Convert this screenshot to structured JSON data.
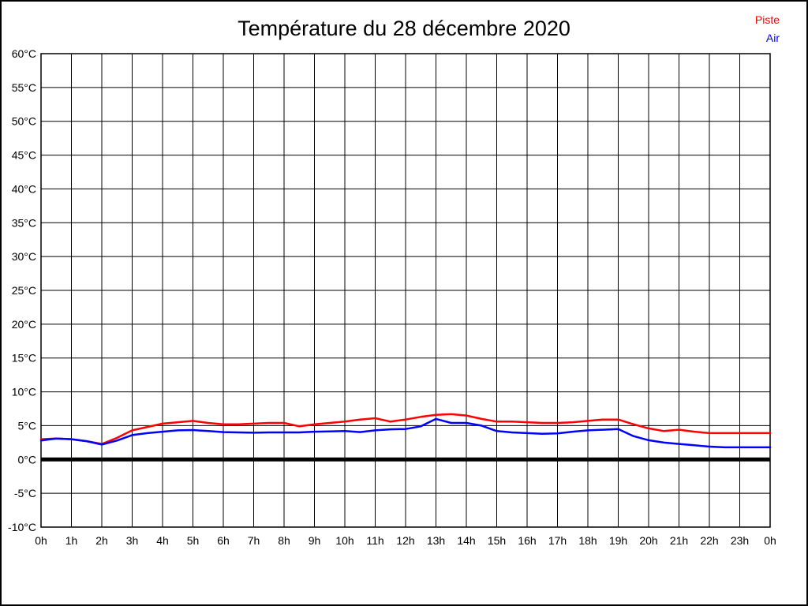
{
  "title": "Température du 28 décembre 2020",
  "legend": [
    {
      "label": "Piste",
      "color": "#ff0000"
    },
    {
      "label": "Air",
      "color": "#0000ff"
    }
  ],
  "chart_data": {
    "type": "line",
    "title": "Température du 28 décembre 2020",
    "xlabel": "",
    "ylabel": "",
    "xlim": [
      0,
      24
    ],
    "ylim": [
      -10,
      60
    ],
    "grid": true,
    "zero_line_at": 0,
    "legend_position": "top-right",
    "x_ticks": [
      {
        "v": 0,
        "label": "0h"
      },
      {
        "v": 1,
        "label": "1h"
      },
      {
        "v": 2,
        "label": "2h"
      },
      {
        "v": 3,
        "label": "3h"
      },
      {
        "v": 4,
        "label": "4h"
      },
      {
        "v": 5,
        "label": "5h"
      },
      {
        "v": 6,
        "label": "6h"
      },
      {
        "v": 7,
        "label": "7h"
      },
      {
        "v": 8,
        "label": "8h"
      },
      {
        "v": 9,
        "label": "9h"
      },
      {
        "v": 10,
        "label": "10h"
      },
      {
        "v": 11,
        "label": "11h"
      },
      {
        "v": 12,
        "label": "12h"
      },
      {
        "v": 13,
        "label": "13h"
      },
      {
        "v": 14,
        "label": "14h"
      },
      {
        "v": 15,
        "label": "15h"
      },
      {
        "v": 16,
        "label": "16h"
      },
      {
        "v": 17,
        "label": "17h"
      },
      {
        "v": 18,
        "label": "18h"
      },
      {
        "v": 19,
        "label": "19h"
      },
      {
        "v": 20,
        "label": "20h"
      },
      {
        "v": 21,
        "label": "21h"
      },
      {
        "v": 22,
        "label": "22h"
      },
      {
        "v": 23,
        "label": "23h"
      },
      {
        "v": 24,
        "label": "0h"
      }
    ],
    "y_ticks": [
      {
        "v": 60,
        "label": "60°C"
      },
      {
        "v": 55,
        "label": "55°C"
      },
      {
        "v": 50,
        "label": "50°C"
      },
      {
        "v": 45,
        "label": "45°C"
      },
      {
        "v": 40,
        "label": "40°C"
      },
      {
        "v": 35,
        "label": "35°C"
      },
      {
        "v": 30,
        "label": "30°C"
      },
      {
        "v": 25,
        "label": "25°C"
      },
      {
        "v": 20,
        "label": "20°C"
      },
      {
        "v": 15,
        "label": "15°C"
      },
      {
        "v": 10,
        "label": "10°C"
      },
      {
        "v": 5,
        "label": "5°C"
      },
      {
        "v": 0,
        "label": "0°C"
      },
      {
        "v": -5,
        "label": "-5°C"
      },
      {
        "v": -10,
        "label": "-10°C"
      }
    ],
    "x": [
      0,
      0.5,
      1,
      1.5,
      2,
      2.5,
      3,
      3.5,
      4,
      4.5,
      5,
      5.5,
      6,
      6.5,
      7,
      7.5,
      8,
      8.5,
      9,
      9.5,
      10,
      10.5,
      11,
      11.5,
      12,
      12.5,
      13,
      13.5,
      14,
      14.5,
      15,
      15.5,
      16,
      16.5,
      17,
      17.5,
      18,
      18.5,
      19,
      19.5,
      20,
      20.5,
      21,
      21.5,
      22,
      22.5,
      23,
      23.5,
      24
    ],
    "series": [
      {
        "name": "Piste",
        "color": "#ff0000",
        "values": [
          3.0,
          3.1,
          3.0,
          2.7,
          2.3,
          3.2,
          4.3,
          4.8,
          5.3,
          5.5,
          5.7,
          5.4,
          5.2,
          5.2,
          5.3,
          5.4,
          5.4,
          4.9,
          5.2,
          5.4,
          5.6,
          5.9,
          6.1,
          5.6,
          5.9,
          6.3,
          6.6,
          6.7,
          6.5,
          6.0,
          5.6,
          5.6,
          5.5,
          5.4,
          5.4,
          5.5,
          5.7,
          5.9,
          5.9,
          5.2,
          4.6,
          4.2,
          4.4,
          4.1,
          3.9,
          3.9,
          3.9,
          3.9,
          3.9
        ]
      },
      {
        "name": "Air",
        "color": "#0000ff",
        "values": [
          2.8,
          3.1,
          3.0,
          2.7,
          2.2,
          2.8,
          3.6,
          3.9,
          4.1,
          4.3,
          4.35,
          4.2,
          4.05,
          4.0,
          3.95,
          4.0,
          4.0,
          4.0,
          4.1,
          4.15,
          4.2,
          4.05,
          4.3,
          4.45,
          4.5,
          4.9,
          6.0,
          5.4,
          5.4,
          5.0,
          4.2,
          4.0,
          3.9,
          3.8,
          3.85,
          4.1,
          4.3,
          4.4,
          4.5,
          3.45,
          2.85,
          2.5,
          2.3,
          2.1,
          1.9,
          1.8,
          1.8,
          1.8,
          1.8
        ]
      }
    ]
  }
}
